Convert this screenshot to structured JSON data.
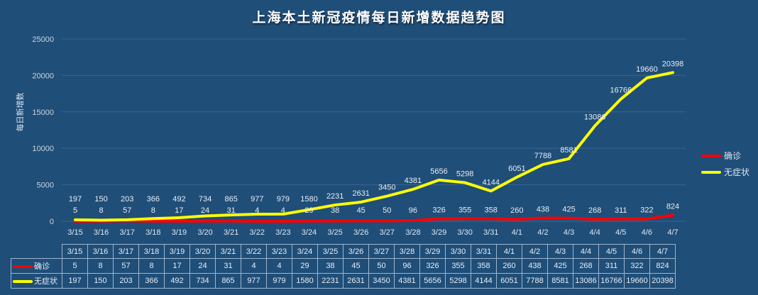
{
  "chart_data": {
    "type": "line",
    "title": "上海本土新冠疫情每日新增数据趋势图",
    "xlabel": "",
    "ylabel": "每日新增数",
    "ylim": [
      0,
      25000
    ],
    "yticks": [
      0,
      5000,
      10000,
      15000,
      20000,
      25000
    ],
    "grid": true,
    "legend_position": "right",
    "categories": [
      "3/15",
      "3/16",
      "3/17",
      "3/18",
      "3/19",
      "3/20",
      "3/21",
      "3/22",
      "3/23",
      "3/24",
      "3/25",
      "3/26",
      "3/27",
      "3/28",
      "3/29",
      "3/30",
      "3/31",
      "4/1",
      "4/2",
      "4/3",
      "4/4",
      "4/5",
      "4/6",
      "4/7"
    ],
    "series": [
      {
        "name": "确诊",
        "color": "#ff0000",
        "values": [
          5,
          8,
          57,
          8,
          17,
          24,
          31,
          4,
          4,
          29,
          38,
          45,
          50,
          96,
          326,
          355,
          358,
          260,
          438,
          425,
          268,
          311,
          322,
          824
        ]
      },
      {
        "name": "无症状",
        "color": "#ffff00",
        "values": [
          197,
          150,
          203,
          366,
          492,
          734,
          865,
          977,
          979,
          1580,
          2231,
          2631,
          3450,
          4381,
          5656,
          5298,
          4144,
          6051,
          7788,
          8581,
          13086,
          16766,
          19660,
          20398
        ]
      }
    ]
  }
}
